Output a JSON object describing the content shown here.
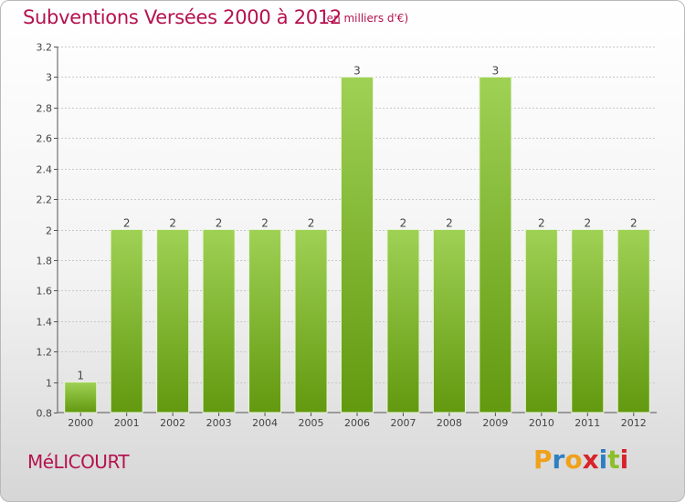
{
  "header": {
    "title": "Subventions Versées 2000 à 2012",
    "subtitle": "(en milliers d'€)"
  },
  "footer": {
    "commune": "MéLICOURT",
    "brand_letters": [
      "P",
      "r",
      "o",
      "x",
      "i",
      "t",
      "i"
    ],
    "brand_colors": [
      "#f0a11c",
      "#2f7fc1",
      "#f0a11c",
      "#d8232a",
      "#2f7fc1",
      "#8bbf2a",
      "#d8232a"
    ]
  },
  "colors": {
    "bar_top": "#9fd155",
    "bar_bottom": "#62990f",
    "accent": "#b5124e"
  },
  "chart_data": {
    "type": "bar",
    "categories": [
      "2000",
      "2001",
      "2002",
      "2003",
      "2004",
      "2005",
      "2006",
      "2007",
      "2008",
      "2009",
      "2010",
      "2011",
      "2012"
    ],
    "values": [
      1,
      2,
      2,
      2,
      2,
      2,
      3,
      2,
      2,
      3,
      2,
      2,
      2
    ],
    "value_labels": [
      "1",
      "2",
      "2",
      "2",
      "2",
      "2",
      "3",
      "2",
      "2",
      "3",
      "2",
      "2",
      "2"
    ],
    "yticks": [
      0.8,
      1,
      1.2,
      1.4,
      1.6,
      1.8,
      2,
      2.2,
      2.4,
      2.6,
      2.8,
      3,
      3.2
    ],
    "ytick_labels": [
      "0.8",
      "1",
      "1.2",
      "1.4",
      "1.6",
      "1.8",
      "2",
      "2.2",
      "2.4",
      "2.6",
      "2.8",
      "3",
      "3.2"
    ],
    "ylim": [
      0.8,
      3.2
    ],
    "grid": true,
    "title": "Subventions Versées 2000 à 2012",
    "xlabel": "",
    "ylabel": ""
  }
}
